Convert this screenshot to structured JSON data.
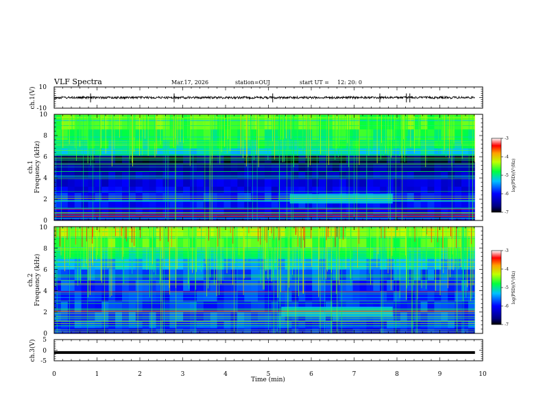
{
  "header": {
    "title": "VLF Spectra",
    "date": "Mar.17, 2026",
    "station": "station=OUJ",
    "start_label": "start  UT  =",
    "start_time": "12: 20: 0"
  },
  "chart_data": [
    {
      "type": "line",
      "panel": "ch1-waveform",
      "ylabel": "ch.1(V)",
      "ylim": [
        -10,
        10
      ],
      "yticks": [
        "10",
        "-10"
      ],
      "xlim": [
        0,
        10
      ],
      "data_end_min": 9.82,
      "baseline": 0,
      "spikes_x": [
        0.85,
        2.8,
        5.1,
        7.6,
        8.22,
        8.3
      ]
    },
    {
      "type": "heatmap",
      "panel": "ch1-spectrogram",
      "ylabel_top": "ch.1",
      "ylabel": "Frequency  (kHz)",
      "ylim": [
        0,
        10
      ],
      "yticks": [
        "0",
        "2",
        "4",
        "6",
        "8",
        "10"
      ],
      "xlim": [
        0,
        10
      ],
      "data_end_min": 9.82,
      "colorbar": {
        "label": "log(PSD)(V²/Hz)",
        "range": [
          -7,
          -3
        ],
        "ticks": [
          "-3",
          "-4",
          "-5",
          "-6",
          "-7"
        ]
      }
    },
    {
      "type": "heatmap",
      "panel": "ch2-spectrogram",
      "ylabel_top": "ch.2",
      "ylabel": "Frequency  (kHz)",
      "ylim": [
        0,
        10
      ],
      "yticks": [
        "0",
        "2",
        "4",
        "6",
        "8",
        "10"
      ],
      "xlim": [
        0,
        10
      ],
      "data_end_min": 9.82,
      "colorbar": {
        "label": "log(PSD)(V²/Hz)",
        "range": [
          -7,
          -3
        ],
        "ticks": [
          "-3",
          "-4",
          "-5",
          "-6",
          "-7"
        ]
      }
    },
    {
      "type": "line",
      "panel": "ch3-waveform",
      "ylabel": "ch.3(V)",
      "ylim": [
        -5,
        5
      ],
      "yticks": [
        "5",
        "0",
        "-5"
      ],
      "xlim": [
        0,
        10
      ],
      "data_end_min": 9.82,
      "baseline": -1.1
    }
  ],
  "xaxis": {
    "label": "Time  (min)",
    "ticks": [
      "0",
      "1",
      "2",
      "3",
      "4",
      "5",
      "6",
      "7",
      "8",
      "9",
      "10"
    ]
  }
}
